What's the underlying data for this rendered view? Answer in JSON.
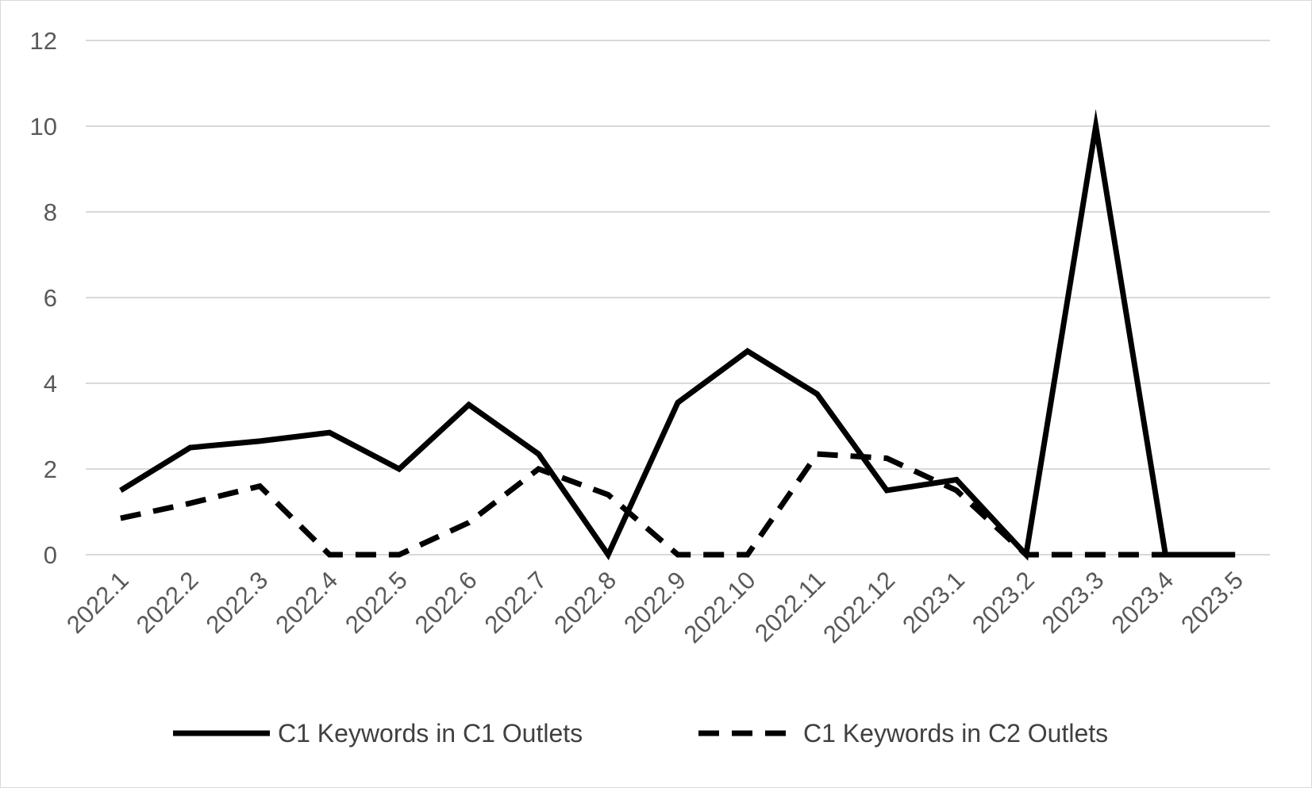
{
  "chart_data": {
    "type": "line",
    "categories": [
      "2022.1",
      "2022.2",
      "2022.3",
      "2022.4",
      "2022.5",
      "2022.6",
      "2022.7",
      "2022.8",
      "2022.9",
      "2022.10",
      "2022.11",
      "2022.12",
      "2023.1",
      "2023.2",
      "2023.3",
      "2023.4",
      "2023.5"
    ],
    "series": [
      {
        "name": "C1 Keywords in C1 Outlets",
        "line_style": "solid",
        "color": "#000000",
        "values": [
          1.5,
          2.5,
          2.65,
          2.85,
          2.0,
          3.5,
          2.35,
          0,
          3.55,
          4.75,
          3.75,
          1.5,
          1.75,
          0,
          10,
          0,
          0
        ]
      },
      {
        "name": "C1 Keywords in C2 Outlets",
        "line_style": "dashed",
        "color": "#000000",
        "values": [
          0.85,
          1.2,
          1.6,
          0,
          0,
          0.75,
          2.0,
          1.4,
          0,
          0,
          2.35,
          2.25,
          1.5,
          0,
          0,
          0,
          0
        ]
      }
    ],
    "yticks": [
      "0",
      "2",
      "4",
      "6",
      "8",
      "10",
      "12"
    ],
    "ylim": [
      0,
      12
    ],
    "grid": true,
    "legend_position": "bottom",
    "gridline_color": "#d9d9d9",
    "tick_color": "#595959"
  }
}
